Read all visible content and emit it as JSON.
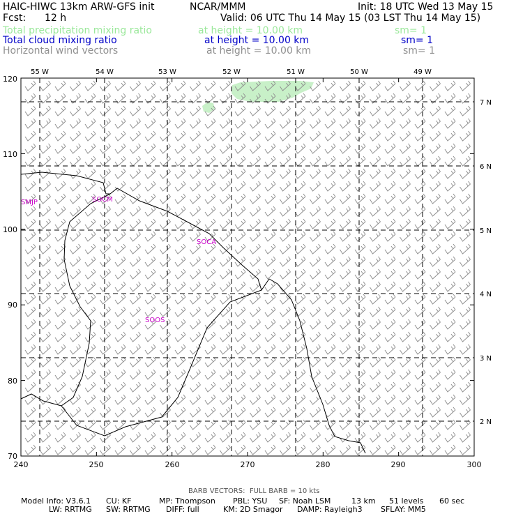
{
  "header": {
    "title": "HAIC-HIWC 13km ARW-GFS init",
    "org": "NCAR/MMM",
    "init": "Init: 18 UTC Wed 13 May 15",
    "fcst_label": "Fcst:",
    "fcst_value": "12 h",
    "valid": "Valid: 06 UTC Thu 14 May 15 (03 LST Thu 14 May 15)"
  },
  "fields": [
    {
      "name": "Total precipitation mixing ratio",
      "height": "at height = 10.00 km",
      "sm": "sm= 1",
      "color": "#9be89b"
    },
    {
      "name": "Total cloud mixing ratio",
      "height": "at height = 10.00 km",
      "sm": "sm= 1",
      "color": "#0000c8"
    },
    {
      "name": "Horizontal wind vectors",
      "height": "at height = 10.00 km",
      "sm": "sm= 1",
      "color": "#909090"
    }
  ],
  "map": {
    "x_ticks": [
      "240",
      "250",
      "260",
      "270",
      "280",
      "290",
      "300"
    ],
    "y_ticks": [
      "70",
      "80",
      "90",
      "100",
      "110",
      "120"
    ],
    "lon_labels": [
      "55 W",
      "54 W",
      "53 W",
      "52 W",
      "51 W",
      "50 W",
      "49 W"
    ],
    "lat_labels": [
      "7 N",
      "6 N",
      "5 N",
      "4 N",
      "3 N",
      "2 N"
    ],
    "stations": [
      "SMJP",
      "SOCM",
      "SOCA",
      "SOOS"
    ],
    "precip_color": "#c8f0c8",
    "coast_color": "#000000",
    "barb_color": "#909090",
    "station_color": "#c800c8"
  },
  "footer": {
    "barb_note": "BARB VECTORS:  FULL BARB = 10 kts",
    "line1": [
      "Model Info: V3.6.1",
      "CU: KF",
      "MP: Thompson",
      "PBL: YSU",
      "SF: Noah LSM",
      "13 km",
      "51 levels",
      "60 sec"
    ],
    "line2": [
      "LW: RRTMG",
      "SW: RRTMG",
      "DIFF: full",
      "KM: 2D Smagor",
      "DAMP: Rayleigh3",
      "SFLAY: MM5"
    ]
  }
}
